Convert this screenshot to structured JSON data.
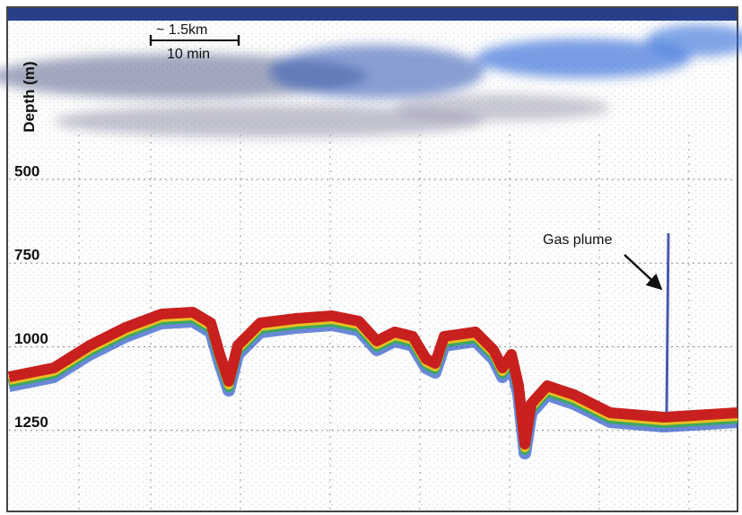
{
  "axis": {
    "label": "Depth (m)",
    "ticks": [
      500,
      750,
      1000,
      1250
    ]
  },
  "scale_bar": {
    "distance": "~ 1.5km",
    "time": "10 min"
  },
  "annotation": "Gas plume"
}
